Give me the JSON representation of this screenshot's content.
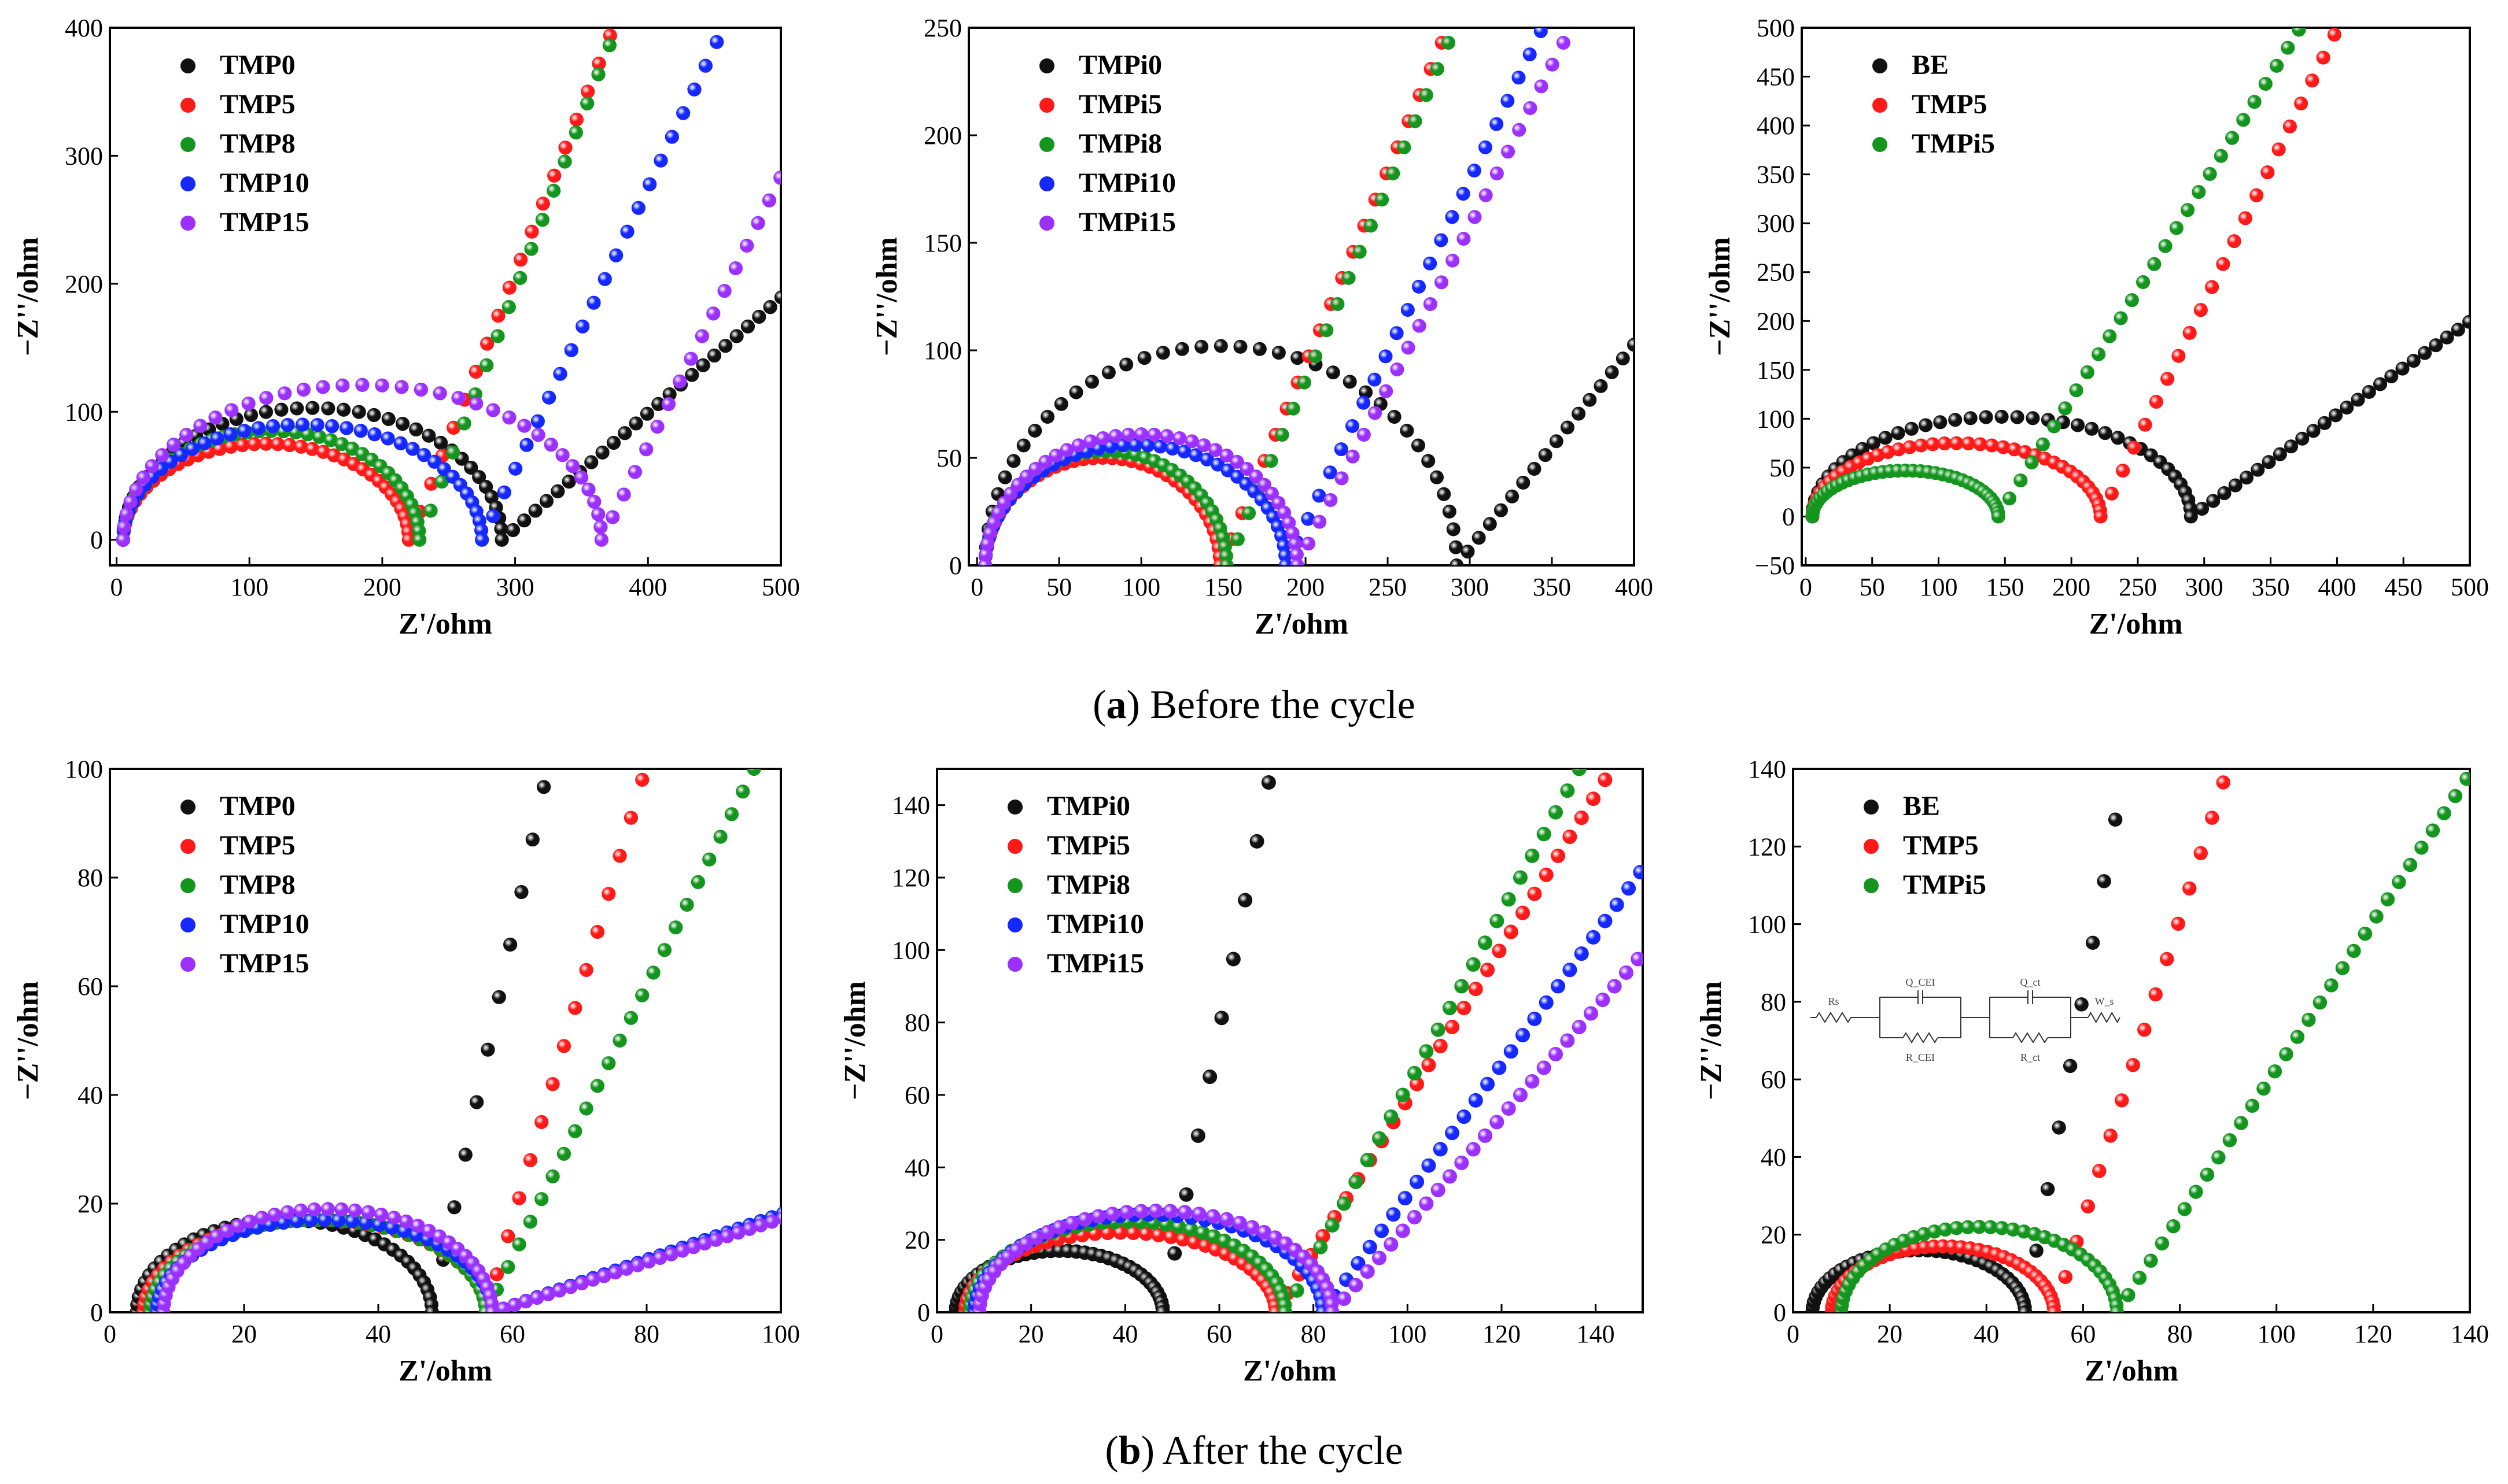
{
  "captions": {
    "a_letter": "a",
    "a_text": " Before the cycle",
    "b_letter": "b",
    "b_text": " After the cycle"
  },
  "colors": {
    "black": "#111111",
    "red": "#ff1a1a",
    "green": "#14961e",
    "blue": "#1428ff",
    "purple": "#9b30ff"
  },
  "chart_data": [
    {
      "id": "a1",
      "type": "scatter",
      "panel": "(a) Before the cycle",
      "xlabel": "Z'/ohm",
      "ylabel": "−Z''/ohm",
      "xlim": [
        -5,
        500
      ],
      "ylim": [
        -20,
        400
      ],
      "xticks": [
        0,
        100,
        200,
        300,
        400,
        500
      ],
      "yticks": [
        0,
        100,
        200,
        300,
        400
      ],
      "legend_position": "top-left",
      "series": [
        {
          "name": "TMP0",
          "color": "black",
          "origin": 5,
          "semicircle_end": 290,
          "peak": 103,
          "tail_slope": 0.9
        },
        {
          "name": "TMP5",
          "color": "red",
          "origin": 5,
          "semicircle_end": 220,
          "peak": 75,
          "tail_slope": 2.6
        },
        {
          "name": "TMP8",
          "color": "green",
          "origin": 5,
          "semicircle_end": 228,
          "peak": 85,
          "tail_slope": 2.7
        },
        {
          "name": "TMP10",
          "color": "blue",
          "origin": 5,
          "semicircle_end": 275,
          "peak": 90,
          "tail_slope": 2.2
        },
        {
          "name": "TMP15",
          "color": "purple",
          "origin": 5,
          "semicircle_end": 365,
          "peak": 121,
          "tail_slope": 2.1
        }
      ]
    },
    {
      "id": "a2",
      "type": "scatter",
      "panel": "(a) Before the cycle",
      "xlabel": "Z'/ohm",
      "ylabel": "−Z''/ohm",
      "xlim": [
        -5,
        400
      ],
      "ylim": [
        0,
        250
      ],
      "xticks": [
        0,
        50,
        100,
        150,
        200,
        250,
        300,
        350,
        400
      ],
      "yticks": [
        0,
        50,
        100,
        150,
        200,
        250
      ],
      "legend_position": "top-left",
      "series": [
        {
          "name": "TMPi0",
          "color": "black",
          "origin": 5,
          "semicircle_end": 292,
          "peak": 102,
          "tail_slope": 0.95
        },
        {
          "name": "TMPi5",
          "color": "red",
          "origin": 5,
          "semicircle_end": 148,
          "peak": 50,
          "tail_slope": 1.8
        },
        {
          "name": "TMPi8",
          "color": "green",
          "origin": 5,
          "semicircle_end": 152,
          "peak": 53,
          "tail_slope": 1.8
        },
        {
          "name": "TMPi10",
          "color": "blue",
          "origin": 5,
          "semicircle_end": 188,
          "peak": 56,
          "tail_slope": 1.6
        },
        {
          "name": "TMPi15",
          "color": "purple",
          "origin": 5,
          "semicircle_end": 195,
          "peak": 61,
          "tail_slope": 1.5
        }
      ]
    },
    {
      "id": "a3",
      "type": "scatter",
      "panel": "(a) Before the cycle",
      "xlabel": "Z'/ohm",
      "ylabel": "−Z''/ohm",
      "xlim": [
        -3,
        500
      ],
      "ylim": [
        -50,
        500
      ],
      "xticks": [
        0,
        50,
        100,
        150,
        200,
        250,
        300,
        350,
        400,
        450,
        500
      ],
      "yticks": [
        -50,
        0,
        50,
        100,
        150,
        200,
        250,
        300,
        350,
        400,
        450,
        500
      ],
      "legend_position": "top-left",
      "series": [
        {
          "name": "BE",
          "color": "black",
          "origin": 5,
          "semicircle_end": 290,
          "peak": 102,
          "tail_slope": 0.95
        },
        {
          "name": "TMP5",
          "color": "red",
          "origin": 5,
          "semicircle_end": 222,
          "peak": 75,
          "tail_slope": 2.8
        },
        {
          "name": "TMPi5",
          "color": "green",
          "origin": 5,
          "semicircle_end": 145,
          "peak": 47,
          "tail_slope": 2.2
        }
      ]
    },
    {
      "id": "b1",
      "type": "scatter",
      "panel": "(b) After the cycle",
      "xlabel": "Z'/ohm",
      "ylabel": "−Z''/ohm",
      "xlim": [
        0,
        100
      ],
      "ylim": [
        0,
        100
      ],
      "xticks": [
        0,
        20,
        40,
        60,
        80,
        100
      ],
      "yticks": [
        0,
        20,
        40,
        60,
        80,
        100
      ],
      "legend_position": "top-left",
      "series": [
        {
          "name": "TMP0",
          "color": "black",
          "origin": 4,
          "semicircle_end": 48,
          "peak": 17,
          "tail_slope": 5.8
        },
        {
          "name": "TMP5",
          "color": "red",
          "origin": 5,
          "semicircle_end": 56,
          "peak": 17,
          "tail_slope": 4.2
        },
        {
          "name": "TMP8",
          "color": "green",
          "origin": 6,
          "semicircle_end": 56,
          "peak": 17,
          "tail_slope": 2.5
        },
        {
          "name": "TMP10",
          "color": "blue",
          "origin": 7,
          "semicircle_end": 57,
          "peak": 17,
          "tail_slope": 0.42
        },
        {
          "name": "TMP15",
          "color": "purple",
          "origin": 8,
          "semicircle_end": 57,
          "peak": 19,
          "tail_slope": 0.4
        }
      ]
    },
    {
      "id": "b2",
      "type": "scatter",
      "panel": "(b) After the cycle",
      "xlabel": "Z'/ohm",
      "ylabel": "−Z''/ohm",
      "xlim": [
        0,
        150
      ],
      "ylim": [
        0,
        150
      ],
      "xticks": [
        0,
        20,
        40,
        60,
        80,
        100,
        120,
        140
      ],
      "yticks": [
        0,
        20,
        40,
        60,
        80,
        100,
        120,
        140
      ],
      "legend_position": "top-left",
      "series": [
        {
          "name": "TMPi0",
          "color": "black",
          "origin": 4,
          "semicircle_end": 48,
          "peak": 17,
          "tail_slope": 6.5
        },
        {
          "name": "TMPi5",
          "color": "red",
          "origin": 6,
          "semicircle_end": 72,
          "peak": 22,
          "tail_slope": 2.1
        },
        {
          "name": "TMPi8",
          "color": "green",
          "origin": 7,
          "semicircle_end": 74,
          "peak": 25,
          "tail_slope": 2.4
        },
        {
          "name": "TMPi10",
          "color": "blue",
          "origin": 8,
          "semicircle_end": 82,
          "peak": 27,
          "tail_slope": 1.8
        },
        {
          "name": "TMPi15",
          "color": "purple",
          "origin": 9,
          "semicircle_end": 84,
          "peak": 28,
          "tail_slope": 1.5
        }
      ]
    },
    {
      "id": "b3",
      "type": "scatter",
      "panel": "(b) After the cycle",
      "xlabel": "Z'/ohm",
      "ylabel": "−Z''/ohm",
      "xlim": [
        0,
        140
      ],
      "ylim": [
        0,
        140
      ],
      "xticks": [
        0,
        20,
        40,
        60,
        80,
        100,
        120,
        140
      ],
      "yticks": [
        0,
        20,
        40,
        60,
        80,
        100,
        120,
        140
      ],
      "legend_position": "top-left",
      "series": [
        {
          "name": "BE",
          "color": "black",
          "origin": 4,
          "semicircle_end": 48,
          "peak": 16,
          "tail_slope": 6.8
        },
        {
          "name": "TMP5",
          "color": "red",
          "origin": 8,
          "semicircle_end": 54,
          "peak": 17,
          "tail_slope": 3.9
        },
        {
          "name": "TMPi5",
          "color": "green",
          "origin": 10,
          "semicircle_end": 67,
          "peak": 22,
          "tail_slope": 1.9
        }
      ],
      "circuit_labels": [
        "Rs",
        "Q_CEI",
        "R_CEI",
        "Q_ct",
        "R_ct",
        "W_s"
      ]
    }
  ]
}
